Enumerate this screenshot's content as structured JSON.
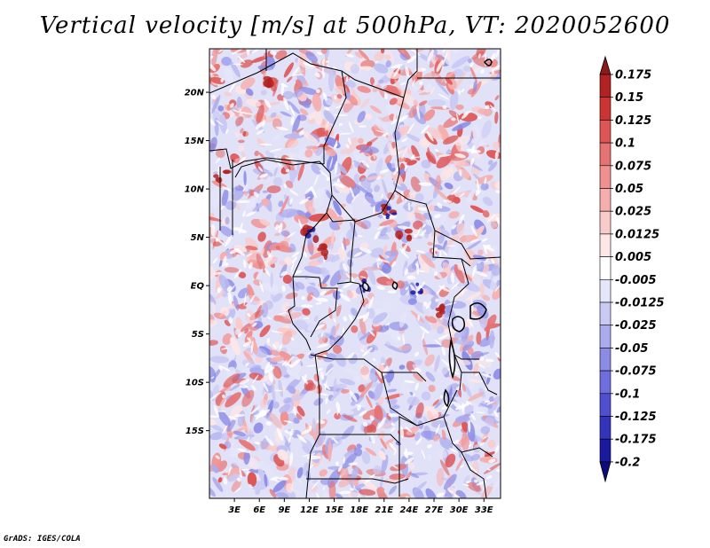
{
  "title": "Vertical velocity [m/s] at 500hPa, VT: 2020052600",
  "credit": "GrADS: IGES/COLA",
  "map": {
    "lon_range": [
      0,
      35
    ],
    "lat_range": [
      -22,
      24.5
    ],
    "lat_ticks": [
      "20N",
      "15N",
      "10N",
      "5N",
      "EQ",
      "5S",
      "10S",
      "15S"
    ],
    "lon_ticks": [
      "3E",
      "6E",
      "9E",
      "12E",
      "15E",
      "18E",
      "21E",
      "24E",
      "27E",
      "30E",
      "33E"
    ]
  },
  "colorbar": {
    "levels": [
      "0.175",
      "0.15",
      "0.125",
      "0.1",
      "0.075",
      "0.05",
      "0.025",
      "0.0125",
      "0.005",
      "-0.005",
      "-0.0125",
      "-0.025",
      "-0.05",
      "-0.075",
      "-0.1",
      "-0.125",
      "-0.175",
      "-0.2"
    ],
    "colors": [
      "#8b1a1a",
      "#b22222",
      "#cc3333",
      "#dd5555",
      "#e67373",
      "#f09090",
      "#f5aeae",
      "#f9caca",
      "#fde6e6",
      "#ffffff",
      "#e6e6fb",
      "#c9c9f4",
      "#aaaaee",
      "#8c8ce6",
      "#6e6ede",
      "#4f4fcf",
      "#3333bb",
      "#1a1a9e",
      "#0d0d7a"
    ]
  }
}
